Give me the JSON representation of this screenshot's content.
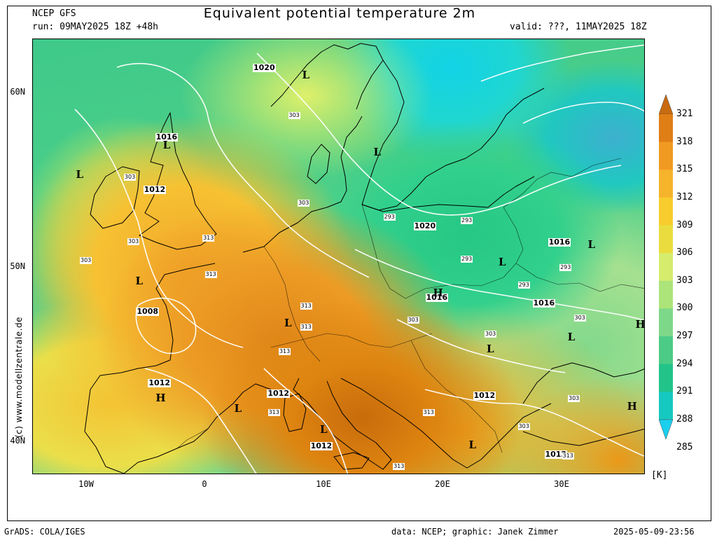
{
  "header": {
    "model": "NCEP GFS",
    "run": "run: 09MAY2025 18Z +48h",
    "title": "Equivalent potential temperature 2m",
    "valid": "valid: ???, 11MAY2025 18Z"
  },
  "axes": {
    "lat_labels": [
      "60N",
      "50N",
      "40N"
    ],
    "lon_labels": [
      "10W",
      "0",
      "10E",
      "20E",
      "30E"
    ]
  },
  "colorbar": {
    "ticks": [
      "321",
      "318",
      "315",
      "312",
      "309",
      "306",
      "303",
      "300",
      "297",
      "294",
      "291",
      "288",
      "285"
    ],
    "colors": [
      "#c86a10",
      "#e07e16",
      "#f09a22",
      "#f6b42c",
      "#f8cc2c",
      "#eadc3e",
      "#d6ec6c",
      "#ace47a",
      "#7ed889",
      "#4ccb86",
      "#22c48a",
      "#16c9c0",
      "#1ad0ee"
    ],
    "unit": "[K]"
  },
  "map_labels": {
    "pressure": [
      {
        "text": "1020",
        "lon": 5.0,
        "lat": 61.3
      },
      {
        "text": "1016",
        "lon": -3.2,
        "lat": 57.3
      },
      {
        "text": "1012",
        "lon": -4.2,
        "lat": 54.3
      },
      {
        "text": "1008",
        "lon": -4.8,
        "lat": 47.3
      },
      {
        "text": "1012",
        "lon": -3.8,
        "lat": 43.2
      },
      {
        "text": "1012",
        "lon": 6.2,
        "lat": 42.6
      },
      {
        "text": "1012",
        "lon": 9.8,
        "lat": 39.6
      },
      {
        "text": "1020",
        "lon": 18.5,
        "lat": 52.2
      },
      {
        "text": "1016",
        "lon": 19.5,
        "lat": 48.1
      },
      {
        "text": "1016",
        "lon": 29.8,
        "lat": 51.3
      },
      {
        "text": "1016",
        "lon": 28.5,
        "lat": 47.8
      },
      {
        "text": "1012",
        "lon": 23.5,
        "lat": 42.5
      },
      {
        "text": "1012",
        "lon": 29.5,
        "lat": 39.1
      }
    ],
    "highs_lows": [
      {
        "text": "L",
        "lon": 8.5,
        "lat": 61.0
      },
      {
        "text": "L",
        "lon": 14.5,
        "lat": 56.6
      },
      {
        "text": "L",
        "lon": -3.2,
        "lat": 57.0
      },
      {
        "text": "L",
        "lon": -10.5,
        "lat": 55.3
      },
      {
        "text": "L",
        "lon": -5.5,
        "lat": 49.2
      },
      {
        "text": "L",
        "lon": 7.0,
        "lat": 46.8
      },
      {
        "text": "L",
        "lon": 2.8,
        "lat": 41.9
      },
      {
        "text": "L",
        "lon": 10.0,
        "lat": 40.7
      },
      {
        "text": "L",
        "lon": 25.0,
        "lat": 50.3
      },
      {
        "text": "L",
        "lon": 32.5,
        "lat": 51.3
      },
      {
        "text": "L",
        "lon": 24.0,
        "lat": 45.3
      },
      {
        "text": "L",
        "lon": 30.8,
        "lat": 46.0
      },
      {
        "text": "L",
        "lon": 22.5,
        "lat": 39.8
      },
      {
        "text": "H",
        "lon": 19.5,
        "lat": 48.5
      },
      {
        "text": "H",
        "lon": -3.8,
        "lat": 42.5
      },
      {
        "text": "H",
        "lon": 36.5,
        "lat": 46.7
      },
      {
        "text": "H",
        "lon": 35.8,
        "lat": 42.0
      }
    ],
    "theta_e": [
      {
        "text": "303",
        "lon": 7.5,
        "lat": 58.5
      },
      {
        "text": "303",
        "lon": -6.3,
        "lat": 55.0
      },
      {
        "text": "303",
        "lon": 8.3,
        "lat": 53.5
      },
      {
        "text": "303",
        "lon": -6.0,
        "lat": 51.3
      },
      {
        "text": "303",
        "lon": -10.0,
        "lat": 50.2
      },
      {
        "text": "313",
        "lon": 0.3,
        "lat": 51.5
      },
      {
        "text": "313",
        "lon": 0.5,
        "lat": 49.4
      },
      {
        "text": "313",
        "lon": 8.5,
        "lat": 47.6
      },
      {
        "text": "313",
        "lon": 8.5,
        "lat": 46.4
      },
      {
        "text": "313",
        "lon": 6.7,
        "lat": 45.0
      },
      {
        "text": "313",
        "lon": 5.8,
        "lat": 41.5
      },
      {
        "text": "313",
        "lon": 18.8,
        "lat": 41.5
      },
      {
        "text": "313",
        "lon": 16.3,
        "lat": 38.4
      },
      {
        "text": "313",
        "lon": 30.5,
        "lat": 39.0
      },
      {
        "text": "293",
        "lon": 15.5,
        "lat": 52.7
      },
      {
        "text": "293",
        "lon": 22.0,
        "lat": 52.5
      },
      {
        "text": "293",
        "lon": 22.0,
        "lat": 50.3
      },
      {
        "text": "293",
        "lon": 30.3,
        "lat": 49.8
      },
      {
        "text": "293",
        "lon": 26.8,
        "lat": 48.8
      },
      {
        "text": "303",
        "lon": 17.5,
        "lat": 46.8
      },
      {
        "text": "303",
        "lon": 24.0,
        "lat": 46.0
      },
      {
        "text": "303",
        "lon": 31.5,
        "lat": 46.9
      },
      {
        "text": "303",
        "lon": 31.0,
        "lat": 42.3
      },
      {
        "text": "303",
        "lon": 26.8,
        "lat": 40.7
      }
    ]
  },
  "side_credit": "(c) www.modellzentrale.de",
  "footer": {
    "left": "GrADS: COLA/IGES",
    "center": "data: NCEP; graphic: Janek Zimmer",
    "right": "2025-05-09-23:56"
  }
}
